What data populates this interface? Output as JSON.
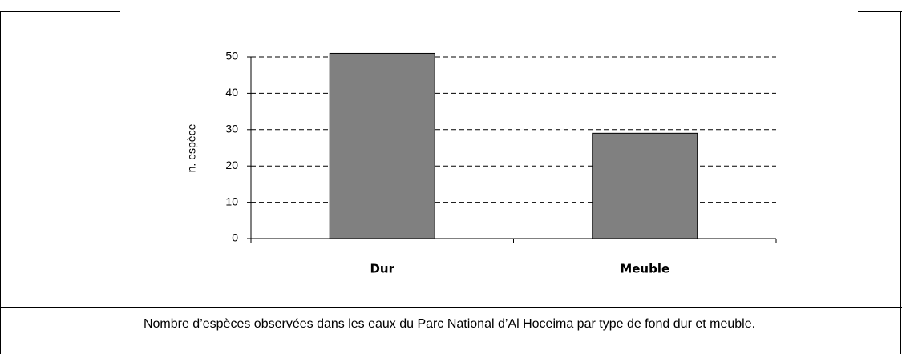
{
  "chart_data": {
    "type": "bar",
    "y_label": "n. espèce",
    "categories": [
      "Dur",
      "Meuble"
    ],
    "values": [
      51,
      29
    ],
    "color": "#808080",
    "ylim": [
      0,
      50
    ],
    "yticks": [
      0,
      10,
      20,
      30,
      40,
      50
    ],
    "grid": true,
    "caption": "Nombre d’espèces observées dans les eaux du Parc National d’Al Hoceima par type de fond dur et meuble."
  }
}
